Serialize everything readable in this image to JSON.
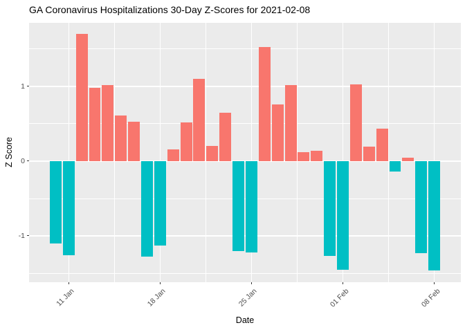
{
  "title": "GA Coronavirus Hospitalizations 30-Day Z-Scores for 2021-02-08",
  "chart_data": {
    "type": "bar",
    "title": "GA Coronavirus Hospitalizations 30-Day Z-Scores for 2021-02-08",
    "xlabel": "Date",
    "ylabel": "Z Score",
    "categories": [
      "10 Jan",
      "11 Jan",
      "12 Jan",
      "13 Jan",
      "14 Jan",
      "15 Jan",
      "16 Jan",
      "17 Jan",
      "18 Jan",
      "19 Jan",
      "20 Jan",
      "21 Jan",
      "22 Jan",
      "23 Jan",
      "24 Jan",
      "25 Jan",
      "26 Jan",
      "27 Jan",
      "28 Jan",
      "29 Jan",
      "30 Jan",
      "31 Jan",
      "01 Feb",
      "02 Feb",
      "03 Feb",
      "04 Feb",
      "05 Feb",
      "06 Feb",
      "07 Feb",
      "08 Feb"
    ],
    "values": [
      -1.1,
      -1.26,
      1.7,
      0.98,
      1.02,
      0.61,
      0.53,
      -1.28,
      -1.13,
      0.16,
      0.52,
      1.1,
      0.2,
      0.65,
      -1.2,
      -1.22,
      1.53,
      0.76,
      1.02,
      0.12,
      0.14,
      -1.27,
      -1.45,
      1.03,
      0.19,
      0.43,
      -0.14,
      0.05,
      -1.23,
      -1.46
    ],
    "colors": {
      "positive": "#F8766D",
      "negative": "#00BFC4"
    },
    "panel_background": "#EBEBEB",
    "grid_color": "#FFFFFF",
    "tick_text_color": "#4D4D4D",
    "grid": true,
    "legend": "none",
    "bar_width_ratio": 0.9,
    "ylim": [
      -1.62,
      1.85
    ],
    "y_ticks": [
      {
        "label": "1",
        "value": 1
      },
      {
        "label": "0",
        "value": 0
      },
      {
        "label": "-1",
        "value": -1
      }
    ],
    "y_minor": [
      1.5,
      0.5,
      -0.5,
      -1.5
    ],
    "x_ticks": [
      {
        "label": "11 Jan",
        "index": 1
      },
      {
        "label": "18 Jan",
        "index": 8
      },
      {
        "label": "25 Jan",
        "index": 15
      },
      {
        "label": "01 Feb",
        "index": 22
      },
      {
        "label": "08 Feb",
        "index": 29
      }
    ],
    "x_minor_indices": [
      4.5,
      11.5,
      18.5,
      25.5
    ]
  }
}
